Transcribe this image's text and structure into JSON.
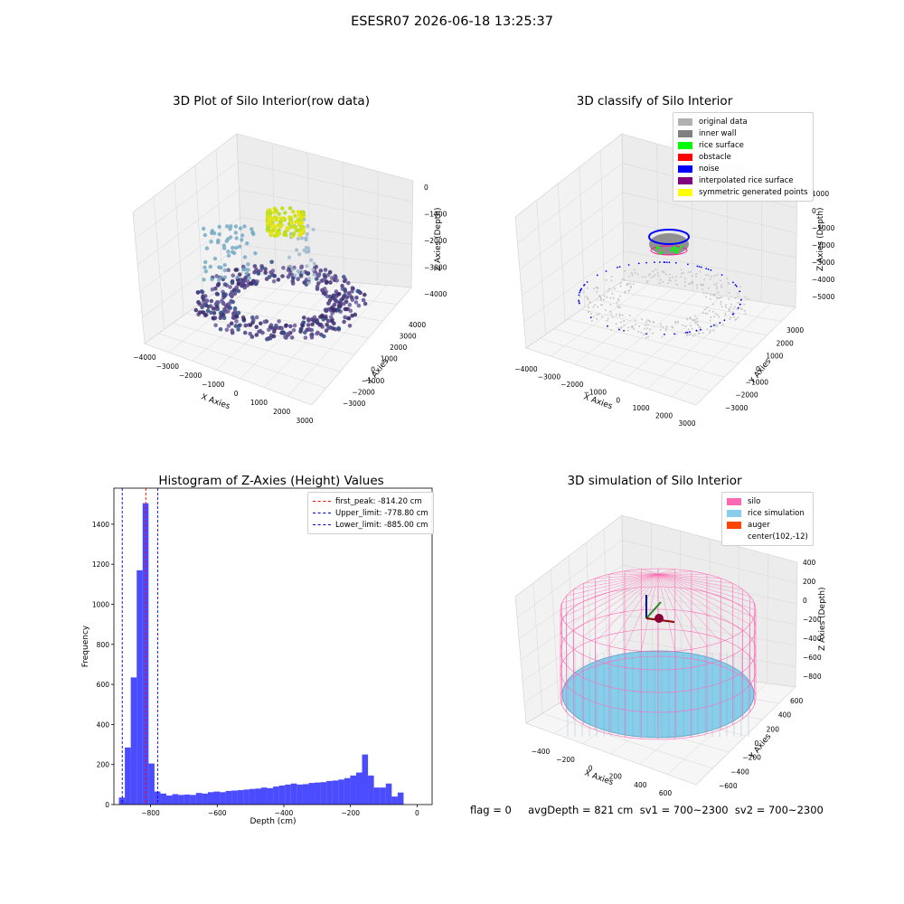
{
  "suptitle": "ESESR07 2026-06-18 13:25:37",
  "panels": {
    "raw": {
      "title": "3D Plot of Silo Interior(row data)",
      "xlabel": "X Axies",
      "ylabel": "Y Axies",
      "zlabel": "Z Axies (Depth)",
      "xticks": [
        "−4000",
        "−3000",
        "−2000",
        "−1000",
        "0",
        "1000",
        "2000",
        "3000"
      ],
      "yticks": [
        "−3000",
        "−2000",
        "−1000",
        "0",
        "1000",
        "2000",
        "3000",
        "4000"
      ],
      "zticks": [
        "0",
        "−1000",
        "−2000",
        "−3000",
        "−4000"
      ]
    },
    "classify": {
      "title": "3D classify of Silo Interior",
      "xlabel": "X Axies",
      "ylabel": "Y Axies",
      "zlabel": "Z Axies (Depth)",
      "xticks": [
        "−4000",
        "−3000",
        "−2000",
        "−1000",
        "0",
        "1000",
        "2000",
        "3000"
      ],
      "yticks": [
        "−3000",
        "−2000",
        "−1000",
        "0",
        "1000",
        "2000",
        "3000"
      ],
      "zticks": [
        "1000",
        "0",
        "−1000",
        "−2000",
        "−3000",
        "−4000",
        "−5000"
      ],
      "legend": [
        {
          "label": "original data",
          "color": "#b0b0b0"
        },
        {
          "label": "inner wall",
          "color": "#808080"
        },
        {
          "label": "rice surface",
          "color": "#00ff00"
        },
        {
          "label": "obstacle",
          "color": "#ff0000"
        },
        {
          "label": "noise",
          "color": "#0000ff"
        },
        {
          "label": "interpolated rice surface",
          "color": "#800080"
        },
        {
          "label": "symmetric generated points",
          "color": "#ffff00"
        }
      ]
    },
    "hist": {
      "title": "Histogram of Z-Axies (Height) Values",
      "legend": [
        {
          "label": "first_peak: -814.20 cm",
          "color": "#ff0000"
        },
        {
          "label": "Upper_limit: -778.80 cm",
          "color": "#0000cc"
        },
        {
          "label": "Lower_limit: -885.00 cm",
          "color": "#0000cc"
        }
      ]
    },
    "sim": {
      "title": "3D simulation of Silo Interior",
      "xlabel": "X Axies",
      "ylabel": "Y Axies",
      "zlabel": "Z Axies (Depth)",
      "xticks": [
        "−400",
        "−200",
        "0",
        "200",
        "400",
        "600"
      ],
      "yticks": [
        "−600",
        "−400",
        "−200",
        "0",
        "200",
        "400",
        "600"
      ],
      "zticks": [
        "400",
        "200",
        "0",
        "−200",
        "−400",
        "−600",
        "−800"
      ],
      "legend": [
        {
          "label": "silo",
          "color": "#ff69b4"
        },
        {
          "label": "rice simulation",
          "color": "#87ceeb"
        },
        {
          "label": "auger",
          "color": "#ff4500"
        },
        {
          "label": "center(102,-12)",
          "color": ""
        }
      ]
    }
  },
  "footer": "flag = 0     avgDepth = 821 cm  sv1 = 700~2300  sv2 = 700~2300",
  "chart_data": {
    "type": "bar",
    "title": "Histogram of Z-Axies (Height) Values",
    "xlabel": "Depth (cm)",
    "ylabel": "Frequency",
    "xlim": [
      -910,
      45
    ],
    "ylim": [
      0,
      1580
    ],
    "xticks": [
      -800,
      -600,
      -400,
      -200,
      0
    ],
    "yticks": [
      0,
      200,
      400,
      600,
      800,
      1000,
      1200,
      1400
    ],
    "bin_start": -895,
    "bin_width": 17.8,
    "bar_color": "#0000ff",
    "values": [
      35,
      285,
      635,
      1170,
      1505,
      205,
      65,
      55,
      45,
      52,
      48,
      50,
      48,
      58,
      55,
      62,
      65,
      62,
      68,
      70,
      72,
      75,
      78,
      80,
      85,
      82,
      90,
      95,
      100,
      105,
      100,
      102,
      108,
      110,
      112,
      118,
      120,
      125,
      132,
      145,
      160,
      250,
      145,
      85,
      85,
      105,
      40,
      60
    ],
    "lines": [
      {
        "name": "first_peak",
        "x": -814.2,
        "color": "#ff0000"
      },
      {
        "name": "Upper_limit",
        "x": -778.8,
        "color": "#0000cc"
      },
      {
        "name": "Lower_limit",
        "x": -885.0,
        "color": "#0000cc"
      }
    ],
    "legend_position": "upper right"
  }
}
